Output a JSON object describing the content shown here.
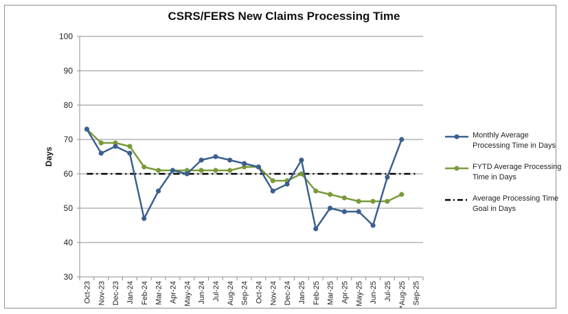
{
  "chart_data": {
    "type": "line",
    "title": "CSRS/FERS New Claims Processing Time",
    "ylabel": "Days",
    "xlabel": "",
    "ylim": [
      30,
      100
    ],
    "yticks": [
      30,
      40,
      50,
      60,
      70,
      80,
      90,
      100
    ],
    "grid": "horizontal",
    "legend_position": "right",
    "categories": [
      "Oct-23",
      "Nov-23",
      "Dec-23",
      "Jan-24",
      "Feb-24",
      "Mar-24",
      "Apr-24",
      "May-24",
      "Jun-24",
      "Jul-24",
      "Aug-24",
      "Sep-24",
      "Oct-24",
      "Nov-24",
      "Dec-24",
      "Jan-25",
      "Feb-25",
      "Mar-25",
      "Apr-25",
      "May-25",
      "Jun-25",
      "Jul-25",
      "*Aug-25",
      "Sep-25"
    ],
    "series": [
      {
        "name": "Monthly Average Processing Time in Days",
        "color": "#3a5f8f",
        "style": "solid-marker",
        "values": [
          73,
          66,
          68,
          66,
          47,
          55,
          61,
          60,
          64,
          65,
          64,
          63,
          62,
          55,
          57,
          64,
          44,
          50,
          49,
          49,
          45,
          59,
          70,
          null
        ]
      },
      {
        "name": "FYTD Average Processing Time in Days",
        "color": "#7a9a3a",
        "style": "solid-marker",
        "values": [
          73,
          69,
          69,
          68,
          62,
          61,
          61,
          61,
          61,
          61,
          61,
          62,
          62,
          58,
          58,
          60,
          55,
          54,
          53,
          52,
          52,
          52,
          54,
          null
        ]
      },
      {
        "name": "Average Processing Time Goal in Days",
        "color": "#000000",
        "style": "dash-dot",
        "values": [
          60,
          60,
          60,
          60,
          60,
          60,
          60,
          60,
          60,
          60,
          60,
          60,
          60,
          60,
          60,
          60,
          60,
          60,
          60,
          60,
          60,
          60,
          60,
          60
        ]
      }
    ]
  }
}
